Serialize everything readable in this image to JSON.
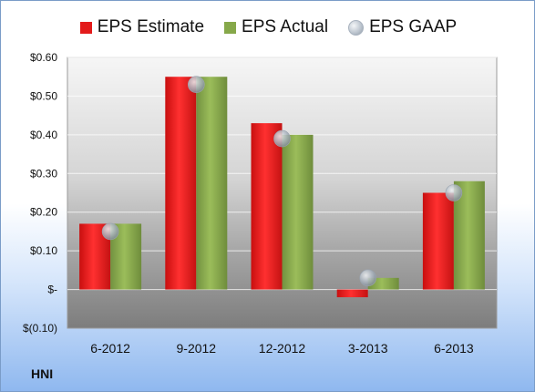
{
  "ticker": "HNI",
  "chart_data": {
    "type": "bar",
    "categories": [
      "6-2012",
      "9-2012",
      "12-2012",
      "3-2013",
      "6-2013"
    ],
    "series": [
      {
        "name": "EPS Estimate",
        "kind": "bar",
        "color": "#e31b1b",
        "values": [
          0.17,
          0.55,
          0.43,
          -0.02,
          0.25
        ]
      },
      {
        "name": "EPS Actual",
        "kind": "bar",
        "color": "#86a84a",
        "values": [
          0.17,
          0.55,
          0.4,
          0.03,
          0.28
        ]
      },
      {
        "name": "EPS GAAP",
        "kind": "marker",
        "color": "#b8c0c9",
        "values": [
          0.15,
          0.53,
          0.39,
          0.03,
          0.25
        ]
      }
    ],
    "ylim": [
      -0.1,
      0.6
    ],
    "yticks": [
      {
        "value": 0.6,
        "label": "$0.60"
      },
      {
        "value": 0.5,
        "label": "$0.50"
      },
      {
        "value": 0.4,
        "label": "$0.40"
      },
      {
        "value": 0.3,
        "label": "$0.30"
      },
      {
        "value": 0.2,
        "label": "$0.20"
      },
      {
        "value": 0.1,
        "label": "$0.10"
      },
      {
        "value": 0.0,
        "label": "$-"
      },
      {
        "value": -0.1,
        "label": "$(0.10)"
      }
    ],
    "grid": true,
    "legend_position": "top"
  }
}
